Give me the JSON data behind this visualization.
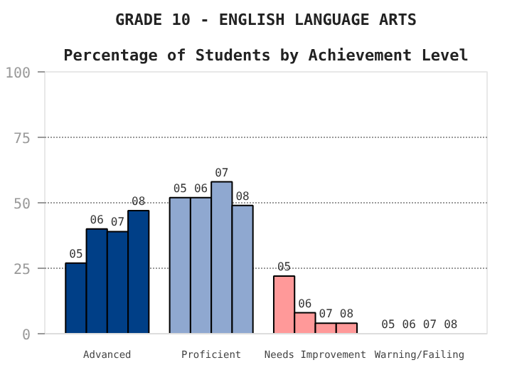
{
  "chart_data": {
    "type": "bar",
    "title": "GRADE 10 - ENGLISH LANGUAGE ARTS",
    "subtitle": "Percentage of Students by Achievement Level",
    "categories": [
      "Advanced",
      "Proficient",
      "Needs Improvement",
      "Warning/Failing"
    ],
    "series": [
      {
        "name": "05",
        "colors": [
          "#003f87",
          "#8fa8d0",
          "#ff9999",
          null
        ],
        "values": [
          27,
          52,
          22,
          0
        ]
      },
      {
        "name": "06",
        "colors": [
          "#003f87",
          "#8fa8d0",
          "#ff9999",
          null
        ],
        "values": [
          40,
          52,
          8,
          0
        ]
      },
      {
        "name": "07",
        "colors": [
          "#003f87",
          "#8fa8d0",
          "#ff9999",
          null
        ],
        "values": [
          39,
          58,
          4,
          0
        ]
      },
      {
        "name": "08",
        "colors": [
          "#003f87",
          "#8fa8d0",
          "#ff9999",
          null
        ],
        "values": [
          47,
          49,
          4,
          0
        ]
      }
    ],
    "ylim": [
      0,
      100
    ],
    "yticks": [
      0,
      25,
      50,
      75,
      100
    ],
    "grid": "y"
  }
}
